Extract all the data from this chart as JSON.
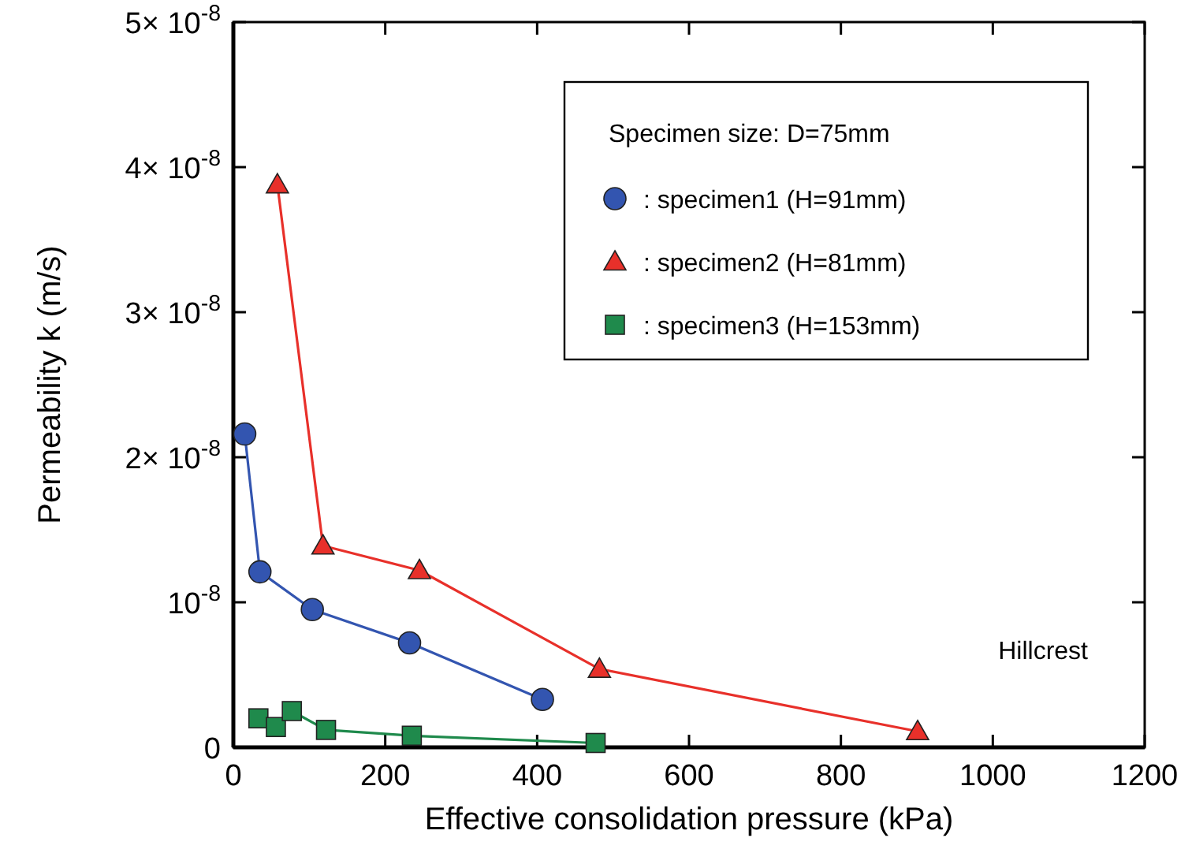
{
  "chart_data": {
    "type": "line",
    "xlabel": "Effective consolidation pressure (kPa)",
    "ylabel": "Permeability k (m/s)",
    "xlim": [
      0,
      1200
    ],
    "xticks": [
      0,
      200,
      400,
      600,
      800,
      1000,
      1200
    ],
    "ylim": [
      0,
      5e-08
    ],
    "yticks": [
      0,
      {
        "value": 1e-08,
        "label": "10$^{-8}$"
      },
      {
        "value": 2e-08,
        "label": "2× 10$^{-8}$"
      },
      {
        "value": 3e-08,
        "label": "3× 10$^{-8}$"
      },
      {
        "value": 4e-08,
        "label": "4× 10$^{-8}$"
      },
      {
        "value": 5e-08,
        "label": "5× 10$^{-8}$"
      }
    ],
    "grid": false,
    "legend": "top right",
    "legend_title": "Specimen size: D=75mm",
    "series": [
      {
        "name": ": specimen1 (H=91mm)",
        "color": "#3355b0",
        "marker": "circle",
        "x": [
          15,
          35,
          104,
          232,
          407
        ],
        "values": [
          2.16e-08,
          1.21e-08,
          9.5e-09,
          7.2e-09,
          3.3e-09
        ]
      },
      {
        "name": ": specimen2 (H=81mm)",
        "color": "#e8302a",
        "marker": "triangle",
        "x": [
          58,
          118,
          245,
          482,
          901
        ],
        "values": [
          3.88e-08,
          1.39e-08,
          1.22e-08,
          5.4e-09,
          1.1e-09
        ]
      },
      {
        "name": ": specimen3 (H=153mm)",
        "color": "#1f8a4c",
        "marker": "square",
        "x": [
          33,
          56,
          77,
          122,
          235,
          477
        ],
        "values": [
          2e-09,
          1.4e-09,
          2.5e-09,
          1.2e-09,
          8e-10,
          3e-10
        ]
      }
    ],
    "annotations": [
      "Hillcrest"
    ]
  }
}
